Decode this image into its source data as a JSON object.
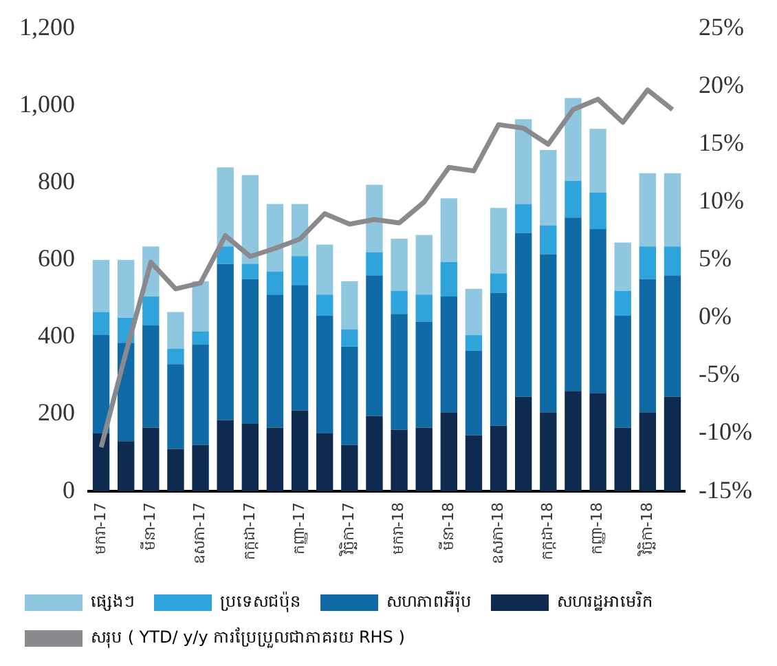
{
  "chart_data": {
    "type": "bar",
    "stacked": true,
    "grid": false,
    "legend": "bottom",
    "categories": [
      "មករា-17",
      null,
      "មីនា-17",
      null,
      "ឧសភា-17",
      null,
      "កក្កដា-17",
      null,
      "កញ្ញា-17",
      null,
      "វិច្ឆិកា-17",
      null,
      "មករា-18",
      null,
      "មីនា-18",
      null,
      "ឧសភា-18",
      null,
      "កក្កដា-18",
      null,
      "កញ្ញា-18",
      null,
      "វិច្ឆិកា-18",
      null
    ],
    "ylim": [
      0,
      1200
    ],
    "yticks": [
      0,
      200,
      400,
      600,
      800,
      {
        "value": 1000,
        "label": "1,000"
      },
      {
        "value": 1200,
        "label": "1,200"
      }
    ],
    "y2lim": [
      -15,
      25
    ],
    "y2ticks": [
      {
        "value": -15,
        "label": "-15%"
      },
      {
        "value": -10,
        "label": "-10%"
      },
      {
        "value": -5,
        "label": "-5%"
      },
      {
        "value": 0,
        "label": "0%"
      },
      {
        "value": 5,
        "label": "5%"
      },
      {
        "value": 10,
        "label": "10%"
      },
      {
        "value": 15,
        "label": "15%"
      },
      {
        "value": 20,
        "label": "20%"
      },
      {
        "value": 25,
        "label": "25%"
      }
    ],
    "series": [
      {
        "name": "សហរដ្ឋអាមេរិក",
        "color": "#0e2a4f",
        "values": [
          150,
          130,
          165,
          110,
          120,
          185,
          175,
          165,
          210,
          150,
          120,
          195,
          160,
          165,
          205,
          145,
          170,
          245,
          205,
          260,
          255,
          165,
          205,
          245
        ]
      },
      {
        "name": "សហភាពអឺរ៉ុប",
        "color": "#0f6aa6",
        "values": [
          255,
          255,
          265,
          220,
          260,
          405,
          375,
          345,
          325,
          305,
          255,
          365,
          300,
          275,
          300,
          220,
          345,
          425,
          410,
          450,
          425,
          290,
          345,
          315
        ]
      },
      {
        "name": "ប្រទេសជប៉ុន",
        "color": "#2ea3dc",
        "values": [
          60,
          65,
          75,
          40,
          35,
          45,
          40,
          60,
          75,
          55,
          45,
          60,
          60,
          70,
          90,
          40,
          50,
          75,
          75,
          95,
          95,
          65,
          85,
          75
        ]
      },
      {
        "name": "ផ្សេងៗ",
        "color": "#8fc6e0",
        "values": [
          135,
          150,
          130,
          95,
          130,
          205,
          230,
          175,
          135,
          130,
          125,
          175,
          135,
          155,
          165,
          120,
          170,
          220,
          195,
          215,
          165,
          125,
          190,
          190
        ]
      },
      {
        "name": "សរុប ( YTD/ y/y ការប្រែប្រួលជាភាគរយ RHS )",
        "type": "line",
        "axis": "y2",
        "marker": "none",
        "color": "#8a8a8e",
        "values": [
          -11.2,
          -3,
          4.8,
          2.5,
          3.0,
          7.1,
          5.3,
          6.0,
          6.8,
          9.0,
          8.1,
          8.5,
          8.2,
          10.0,
          13.0,
          12.7,
          16.7,
          16.4,
          15.0,
          18.0,
          18.9,
          16.9,
          19.7,
          18.0
        ]
      }
    ]
  }
}
